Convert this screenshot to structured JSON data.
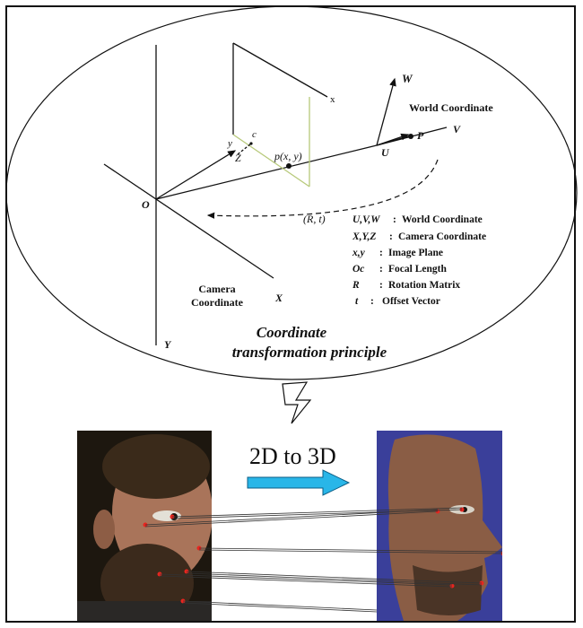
{
  "diagram": {
    "title_line1": "Coordinate",
    "title_line2": "transformation principle",
    "world_label": "World Coordinate",
    "camera_label_line1": "Camera",
    "camera_label_line2": "Coordinate",
    "axes": {
      "W": "W",
      "V": "V",
      "U": "U",
      "P": "P",
      "x": "x",
      "y": "y",
      "c": "c",
      "Z": "Z",
      "p": "p(x, y)",
      "O": "O",
      "X": "X",
      "Y": "Y",
      "Rt": "(R, t)"
    },
    "legend": [
      {
        "sym": "U,V,W",
        "sep": ":",
        "desc": "World Coordinate"
      },
      {
        "sym": "X,Y,Z",
        "sep": ":",
        "desc": "Camera Coordinate"
      },
      {
        "sym": "x,y",
        "sep": ":",
        "desc": "Image Plane"
      },
      {
        "sym": "Oc",
        "sep": ":",
        "desc": "Focal Length"
      },
      {
        "sym": "R",
        "sep": ":",
        "desc": "Rotation Matrix"
      },
      {
        "sym": "t",
        "sep": ":",
        "desc": "Offset Vector"
      }
    ]
  },
  "conversion": {
    "label": "2D to 3D",
    "arrow_color": "#29b6e8"
  },
  "colors": {
    "landmark": "#e8251f",
    "image_plane": "#b7c97a",
    "face_left_bg": "#201a12",
    "face_right_bg": "#3a3f9a"
  }
}
